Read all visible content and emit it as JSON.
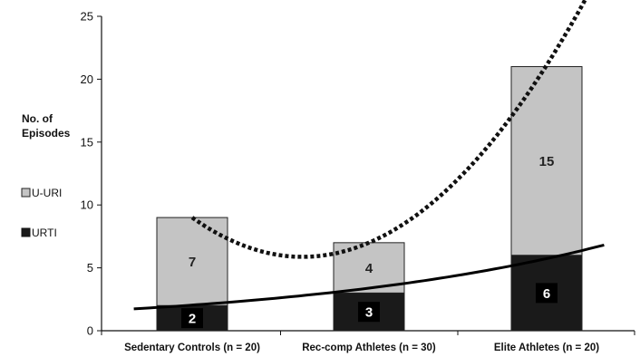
{
  "chart_data": {
    "type": "bar",
    "stacked": true,
    "categories": [
      "Sedentary Controls (n = 20)",
      "Rec-comp Athletes (n = 30)",
      "Elite Athletes (n = 20)"
    ],
    "series": [
      {
        "name": "URTI",
        "values": [
          2,
          3,
          6
        ],
        "color": "#1a1a1a"
      },
      {
        "name": "U-URI",
        "values": [
          7,
          4,
          15
        ],
        "color": "#c4c4c4"
      }
    ],
    "ylabel_lines": [
      "No. of",
      "Episodes"
    ],
    "ylim": [
      0,
      25
    ],
    "yticks": [
      "0",
      "5",
      "10",
      "15",
      "20",
      "25"
    ],
    "grid": false,
    "legend": "left",
    "trendlines": [
      {
        "series": "URTI",
        "style": "solid",
        "color": "#000000"
      },
      {
        "series": "Total",
        "style": "dotted",
        "color": "#111111"
      }
    ]
  }
}
